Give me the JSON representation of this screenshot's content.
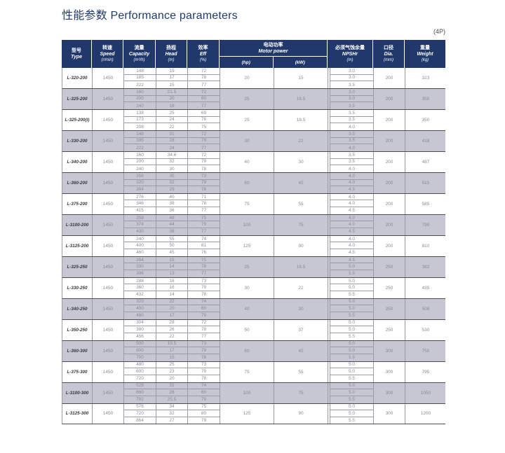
{
  "title": "性能参数 Performance parameters",
  "page_tag": "(4P)",
  "table": {
    "header": {
      "type": {
        "zh": "型号",
        "en": "Type"
      },
      "speed": {
        "zh": "转速",
        "en": "Speed",
        "unit": "(r/min)"
      },
      "capacity": {
        "zh": "流量",
        "en": "Capacity",
        "unit": "(m³/h)"
      },
      "head": {
        "zh": "扬程",
        "en": "Head",
        "unit": "(m)"
      },
      "eff": {
        "zh": "效率",
        "en": "Eff",
        "unit": "(%)"
      },
      "motor_power": {
        "zh": "电动功率",
        "en": "Motor power",
        "sub": [
          "(hp)",
          "(kW)"
        ]
      },
      "npshr": {
        "zh": "必须气蚀余量",
        "en": "NPSHr",
        "unit": "(m)"
      },
      "dia": {
        "zh": "口径",
        "en": "Dia.",
        "unit": "(mm)"
      },
      "weight": {
        "zh": "重量",
        "en": "Weight",
        "unit": "(kg)"
      }
    },
    "rows": [
      {
        "type": "L-320-200",
        "speed": "1450",
        "capacity": [
          "148",
          "185",
          "222"
        ],
        "head": [
          "19",
          "17",
          "15"
        ],
        "eff": [
          "72",
          "78",
          "77"
        ],
        "hp": "20",
        "kw": "15",
        "npshr": [
          "3.0",
          "3.0",
          "3.5"
        ],
        "dia": "200",
        "weight": "323"
      },
      {
        "type": "L-325-200",
        "speed": "1450",
        "capacity": [
          "160",
          "200",
          "240"
        ],
        "head": [
          "21.5",
          "20",
          "18"
        ],
        "eff": [
          "72",
          "80",
          "77"
        ],
        "hp": "25",
        "kw": "18.5",
        "npshr": [
          "3.0",
          "3.0",
          "3.5"
        ],
        "dia": "200",
        "weight": "350"
      },
      {
        "type": "L-325-200(I)",
        "speed": "1450",
        "capacity": [
          "138",
          "173",
          "208"
        ],
        "head": [
          "25",
          "24",
          "22"
        ],
        "eff": [
          "69",
          "76",
          "75"
        ],
        "hp": "25",
        "kw": "18.5",
        "npshr": [
          "3.5",
          "3.5",
          "4.0"
        ],
        "dia": "200",
        "weight": "350"
      },
      {
        "type": "L-330-200",
        "speed": "1450",
        "capacity": [
          "148",
          "185",
          "222"
        ],
        "head": [
          "31",
          "28",
          "24"
        ],
        "eff": [
          "72",
          "78",
          "77"
        ],
        "hp": "30",
        "kw": "22",
        "npshr": [
          "3.5",
          "3.5",
          "4.0"
        ],
        "dia": "200",
        "weight": "418"
      },
      {
        "type": "L-340-200",
        "speed": "1450",
        "capacity": [
          "160",
          "200",
          "240"
        ],
        "head": [
          "34.6",
          "32",
          "30"
        ],
        "eff": [
          "72",
          "79",
          "78"
        ],
        "hp": "40",
        "kw": "30",
        "npshr": [
          "3.5",
          "3.5",
          "4.0"
        ],
        "dia": "200",
        "weight": "487"
      },
      {
        "type": "L-360-200",
        "speed": "1450",
        "capacity": [
          "256",
          "320",
          "384"
        ],
        "head": [
          "35",
          "32",
          "29"
        ],
        "eff": [
          "73",
          "79",
          "78"
        ],
        "hp": "60",
        "kw": "45",
        "npshr": [
          "4.0",
          "4.0",
          "4.5"
        ],
        "dia": "200",
        "weight": "515"
      },
      {
        "type": "L-375-200",
        "speed": "1450",
        "capacity": [
          "276",
          "346",
          "415"
        ],
        "head": [
          "40",
          "38",
          "36"
        ],
        "eff": [
          "71",
          "78",
          "77"
        ],
        "hp": "75",
        "kw": "55",
        "npshr": [
          "4.0",
          "4.0",
          "4.5"
        ],
        "dia": "200",
        "weight": "585"
      },
      {
        "type": "L-3100-200",
        "speed": "1450",
        "capacity": [
          "258",
          "374",
          "430"
        ],
        "head": [
          "48",
          "44",
          "38"
        ],
        "eff": [
          "75",
          "79",
          "77"
        ],
        "hp": "100",
        "kw": "75",
        "npshr": [
          "4.0",
          "4.0",
          "4.5"
        ],
        "dia": "200",
        "weight": "790"
      },
      {
        "type": "L-3125-200",
        "speed": "1450",
        "capacity": [
          "240",
          "400",
          "460"
        ],
        "head": [
          "55",
          "50",
          "45"
        ],
        "eff": [
          "74",
          "81",
          "76"
        ],
        "hp": "125",
        "kw": "90",
        "npshr": [
          "4.0",
          "4.0",
          "4.5"
        ],
        "dia": "200",
        "weight": "810"
      },
      {
        "type": "L-325-250",
        "speed": "1450",
        "capacity": [
          "264",
          "330",
          "396"
        ],
        "head": [
          "15",
          "14",
          "13"
        ],
        "eff": [
          "75",
          "78",
          "77"
        ],
        "hp": "25",
        "kw": "18.5",
        "npshr": [
          "4.5",
          "5.0",
          "5.5"
        ],
        "dia": "250",
        "weight": "382"
      },
      {
        "type": "L-330-250",
        "speed": "1450",
        "capacity": [
          "288",
          "360",
          "432"
        ],
        "head": [
          "18",
          "16",
          "14"
        ],
        "eff": [
          "73",
          "79",
          "78"
        ],
        "hp": "30",
        "kw": "22",
        "npshr": [
          "5.0",
          "5.0",
          "5.5"
        ],
        "dia": "250",
        "weight": "435"
      },
      {
        "type": "L-340-250",
        "speed": "1450",
        "capacity": [
          "320",
          "400",
          "480"
        ],
        "head": [
          "22",
          "20",
          "17"
        ],
        "eff": [
          "74",
          "80",
          "79"
        ],
        "hp": "40",
        "kw": "30",
        "npshr": [
          "5.0",
          "5.0",
          "5.5"
        ],
        "dia": "250",
        "weight": "508"
      },
      {
        "type": "L-350-250",
        "speed": "1450",
        "capacity": [
          "304",
          "380",
          "456"
        ],
        "head": [
          "28",
          "26",
          "22"
        ],
        "eff": [
          "72",
          "78",
          "77"
        ],
        "hp": "50",
        "kw": "37",
        "npshr": [
          "5.0",
          "5.0",
          "5.5"
        ],
        "dia": "250",
        "weight": "530"
      },
      {
        "type": "L-360-300",
        "speed": "1450",
        "capacity": [
          "500",
          "600",
          "700"
        ],
        "head": [
          "19.5",
          "17",
          "15"
        ],
        "eff": [
          "73",
          "79",
          "78"
        ],
        "hp": "60",
        "kw": "45",
        "npshr": [
          "5.0",
          "5.0",
          "5.5"
        ],
        "dia": "300",
        "weight": "750"
      },
      {
        "type": "L-375-300",
        "speed": "1450",
        "capacity": [
          "480",
          "600",
          "720"
        ],
        "head": [
          "25",
          "23",
          "20"
        ],
        "eff": [
          "73",
          "79",
          "78"
        ],
        "hp": "75",
        "kw": "55",
        "npshr": [
          "5.0",
          "5.0",
          "5.5"
        ],
        "dia": "300",
        "weight": "795"
      },
      {
        "type": "L-3100-300",
        "speed": "1450",
        "capacity": [
          "528",
          "660",
          "792"
        ],
        "head": [
          "31",
          "28",
          "25.5"
        ],
        "eff": [
          "74",
          "80",
          "79"
        ],
        "hp": "100",
        "kw": "75",
        "npshr": [
          "5.0",
          "5.0",
          "5.5"
        ],
        "dia": "300",
        "weight": "1050"
      },
      {
        "type": "L-3125-300",
        "speed": "1450",
        "capacity": [
          "576",
          "720",
          "864"
        ],
        "head": [
          "34",
          "32",
          "27"
        ],
        "eff": [
          "75",
          "80",
          "79"
        ],
        "hp": "125",
        "kw": "90",
        "npshr": [
          "5.0",
          "5.0",
          "5.5"
        ],
        "dia": "300",
        "weight": "1200"
      }
    ]
  }
}
